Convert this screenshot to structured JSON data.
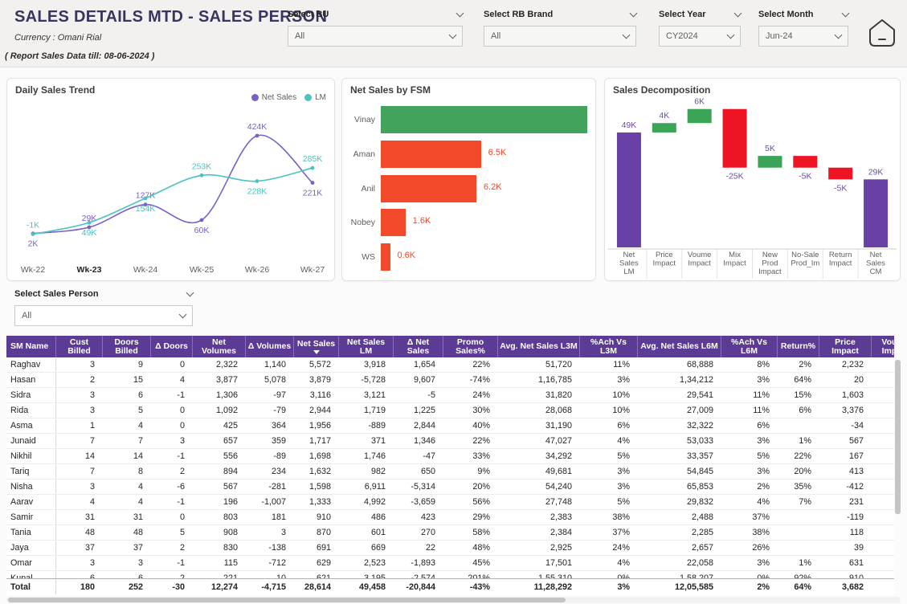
{
  "header": {
    "title": "SALES DETAILS MTD - SALES PERSON",
    "currency": "Currency : Omani Rial",
    "report_note": "( Report Sales Data till: 08-06-2024 )"
  },
  "filters": [
    {
      "label": "Select BU",
      "value": "All"
    },
    {
      "label": "Select RB Brand",
      "value": "All"
    },
    {
      "label": "Select Year",
      "value": "CY2024"
    },
    {
      "label": "Select Month",
      "value": "Jun-24"
    }
  ],
  "sales_person_filter": {
    "label": "Select Sales Person",
    "value": "All"
  },
  "colors": {
    "accent_purple": "#5b3b94",
    "line_net_sales": "#7a5fc7",
    "line_lm": "#4bc3be",
    "bar_green": "#43a25c",
    "bar_red_orange": "#f2492b",
    "waterfall_total": "#6941a6",
    "waterfall_increase": "#3ba456",
    "waterfall_decrease": "#ee1423",
    "waterfall_label": "#6c4da4"
  },
  "chart_data": [
    {
      "type": "line",
      "title": "Daily Sales Trend",
      "x": [
        "Wk-22",
        "Wk-23",
        "Wk-24",
        "Wk-25",
        "Wk-26",
        "Wk-27"
      ],
      "bold_x_label": "Wk-23",
      "legend_position": "top-right",
      "grid": false,
      "series": [
        {
          "name": "Net Sales",
          "color": "#7a5fc7",
          "values_k": [
            2,
            29,
            127,
            60,
            424,
            221
          ],
          "labels": [
            "2K",
            "29K",
            "127K",
            "60K",
            "424K",
            "221K"
          ],
          "label_pos": [
            "below",
            "above",
            "above",
            "below",
            "above",
            "below"
          ]
        },
        {
          "name": "LM",
          "color": "#4bc3be",
          "values_k": [
            -1,
            49,
            154,
            253,
            228,
            285
          ],
          "labels": [
            "-1K",
            "49K",
            "154K",
            "253K",
            "228K",
            "285K"
          ],
          "label_pos": [
            "above",
            "below",
            "below",
            "above",
            "below",
            "above"
          ]
        }
      ]
    },
    {
      "type": "bar",
      "title": "Net Sales by FSM",
      "orientation": "horizontal",
      "categories": [
        "Vinay",
        "Aman",
        "Anil",
        "Nobey",
        "WS"
      ],
      "values_k": [
        13.4,
        6.5,
        6.2,
        1.6,
        0.6
      ],
      "labels": [
        "",
        "6.5K",
        "6.2K",
        "1.6K",
        "0.6K"
      ],
      "bar_colors": [
        "#43a25c",
        "#f2492b",
        "#f2492b",
        "#f2492b",
        "#f2492b"
      ],
      "xlim_k": [
        0,
        13.4
      ]
    },
    {
      "type": "waterfall",
      "title": "Sales Decomposition",
      "categories": [
        "Net Sales LM",
        "Price Impact",
        "Voume Impact",
        "Mix Impact",
        "New Prod Impact",
        "No-Sale Prod_Im",
        "Return Impact",
        "Net Sales CM"
      ],
      "category_lines": [
        [
          "Net",
          "Sales",
          "LM"
        ],
        [
          "Price",
          "Impact"
        ],
        [
          "Voume",
          "Impact"
        ],
        [
          "Mix",
          "Impact"
        ],
        [
          "New",
          "Prod",
          "Impact"
        ],
        [
          "No-Sale",
          "Prod_Im"
        ],
        [
          "Return",
          "Impact"
        ],
        [
          "Net",
          "Sales",
          "CM"
        ]
      ],
      "values_k": [
        49,
        4,
        6,
        -25,
        5,
        -5,
        -5,
        29
      ],
      "labels": [
        "49K",
        "4K",
        "6K",
        "-25K",
        "5K",
        "-5K",
        "-5K",
        "29K"
      ],
      "bar_types": [
        "total",
        "increase",
        "increase",
        "decrease",
        "increase",
        "decrease",
        "decrease",
        "total"
      ],
      "label_pos": [
        "above",
        "above",
        "above",
        "below",
        "above",
        "below",
        "below",
        "above"
      ]
    }
  ],
  "table": {
    "headers": [
      "SM Name",
      "Cust Billed",
      "Doors Billed",
      "Δ Doors",
      "Net Volumes",
      "Δ Volumes",
      "Net Sales",
      "Net Sales LM",
      "Δ Net Sales",
      "Promo Sales%",
      "Avg. Net Sales L3M",
      "%Ach Vs L3M",
      "Avg. Net Sales L6M",
      "%Ach Vs L6M",
      "Return%",
      "Price Impact",
      "Voume Impact"
    ],
    "sorted_by": "Net Sales",
    "rows": [
      [
        "Raghav",
        "3",
        "9",
        "0",
        "2,322",
        "1,140",
        "5,572",
        "3,918",
        "1,654",
        "22%",
        "51,720",
        "11%",
        "68,888",
        "8%",
        "2%",
        "2,232",
        ""
      ],
      [
        "Hasan",
        "2",
        "15",
        "4",
        "3,877",
        "5,078",
        "3,879",
        "-5,728",
        "9,607",
        "-74%",
        "1,16,785",
        "3%",
        "1,34,212",
        "3%",
        "64%",
        "20",
        ""
      ],
      [
        "Sidra",
        "3",
        "6",
        "-1",
        "1,306",
        "-97",
        "3,116",
        "3,121",
        "-5",
        "24%",
        "31,820",
        "10%",
        "29,541",
        "11%",
        "15%",
        "1,603",
        ""
      ],
      [
        "Rida",
        "3",
        "5",
        "0",
        "1,092",
        "-79",
        "2,944",
        "1,719",
        "1,225",
        "30%",
        "28,068",
        "10%",
        "27,009",
        "11%",
        "6%",
        "3,376",
        ""
      ],
      [
        "Asma",
        "1",
        "4",
        "0",
        "425",
        "364",
        "1,956",
        "-889",
        "2,844",
        "40%",
        "31,190",
        "6%",
        "32,322",
        "6%",
        "",
        "-34",
        ""
      ],
      [
        "Junaid",
        "7",
        "7",
        "3",
        "657",
        "359",
        "1,717",
        "371",
        "1,346",
        "22%",
        "47,027",
        "4%",
        "53,033",
        "3%",
        "1%",
        "567",
        ""
      ],
      [
        "Nikhil",
        "14",
        "14",
        "-1",
        "556",
        "-89",
        "1,698",
        "1,746",
        "-47",
        "33%",
        "34,292",
        "5%",
        "33,357",
        "5%",
        "22%",
        "167",
        ""
      ],
      [
        "Tariq",
        "7",
        "8",
        "2",
        "894",
        "234",
        "1,632",
        "982",
        "650",
        "9%",
        "49,681",
        "3%",
        "54,845",
        "3%",
        "20%",
        "413",
        ""
      ],
      [
        "Nisha",
        "3",
        "4",
        "-6",
        "567",
        "-281",
        "1,598",
        "6,911",
        "-5,314",
        "20%",
        "54,240",
        "3%",
        "65,853",
        "2%",
        "35%",
        "-412",
        ""
      ],
      [
        "Aarav",
        "4",
        "4",
        "-1",
        "196",
        "-1,007",
        "1,333",
        "4,992",
        "-3,659",
        "56%",
        "27,748",
        "5%",
        "29,832",
        "4%",
        "7%",
        "231",
        ""
      ],
      [
        "Samir",
        "31",
        "31",
        "0",
        "803",
        "181",
        "910",
        "486",
        "423",
        "29%",
        "2,383",
        "38%",
        "2,488",
        "37%",
        "",
        "-119",
        ""
      ],
      [
        "Tania",
        "48",
        "48",
        "5",
        "908",
        "3",
        "870",
        "601",
        "270",
        "58%",
        "2,384",
        "37%",
        "2,285",
        "38%",
        "",
        "118",
        ""
      ],
      [
        "Jaya",
        "37",
        "37",
        "2",
        "830",
        "-138",
        "691",
        "669",
        "22",
        "48%",
        "2,925",
        "24%",
        "2,657",
        "26%",
        "",
        "39",
        ""
      ],
      [
        "Omar",
        "3",
        "3",
        "-1",
        "115",
        "-712",
        "629",
        "2,523",
        "-1,893",
        "45%",
        "17,501",
        "4%",
        "22,058",
        "3%",
        "1%",
        "631",
        ""
      ],
      [
        "Kunal",
        "6",
        "6",
        "2",
        "221",
        "10",
        "621",
        "3,195",
        "-2,574",
        "201%",
        "1,55,310",
        "0%",
        "1,58,207",
        "0%",
        "92%",
        "910",
        ""
      ]
    ],
    "total_row": [
      "Total",
      "180",
      "252",
      "-30",
      "12,274",
      "-4,715",
      "28,614",
      "49,458",
      "-20,844",
      "-43%",
      "11,28,292",
      "3%",
      "12,05,585",
      "2%",
      "64%",
      "3,682",
      ""
    ]
  }
}
